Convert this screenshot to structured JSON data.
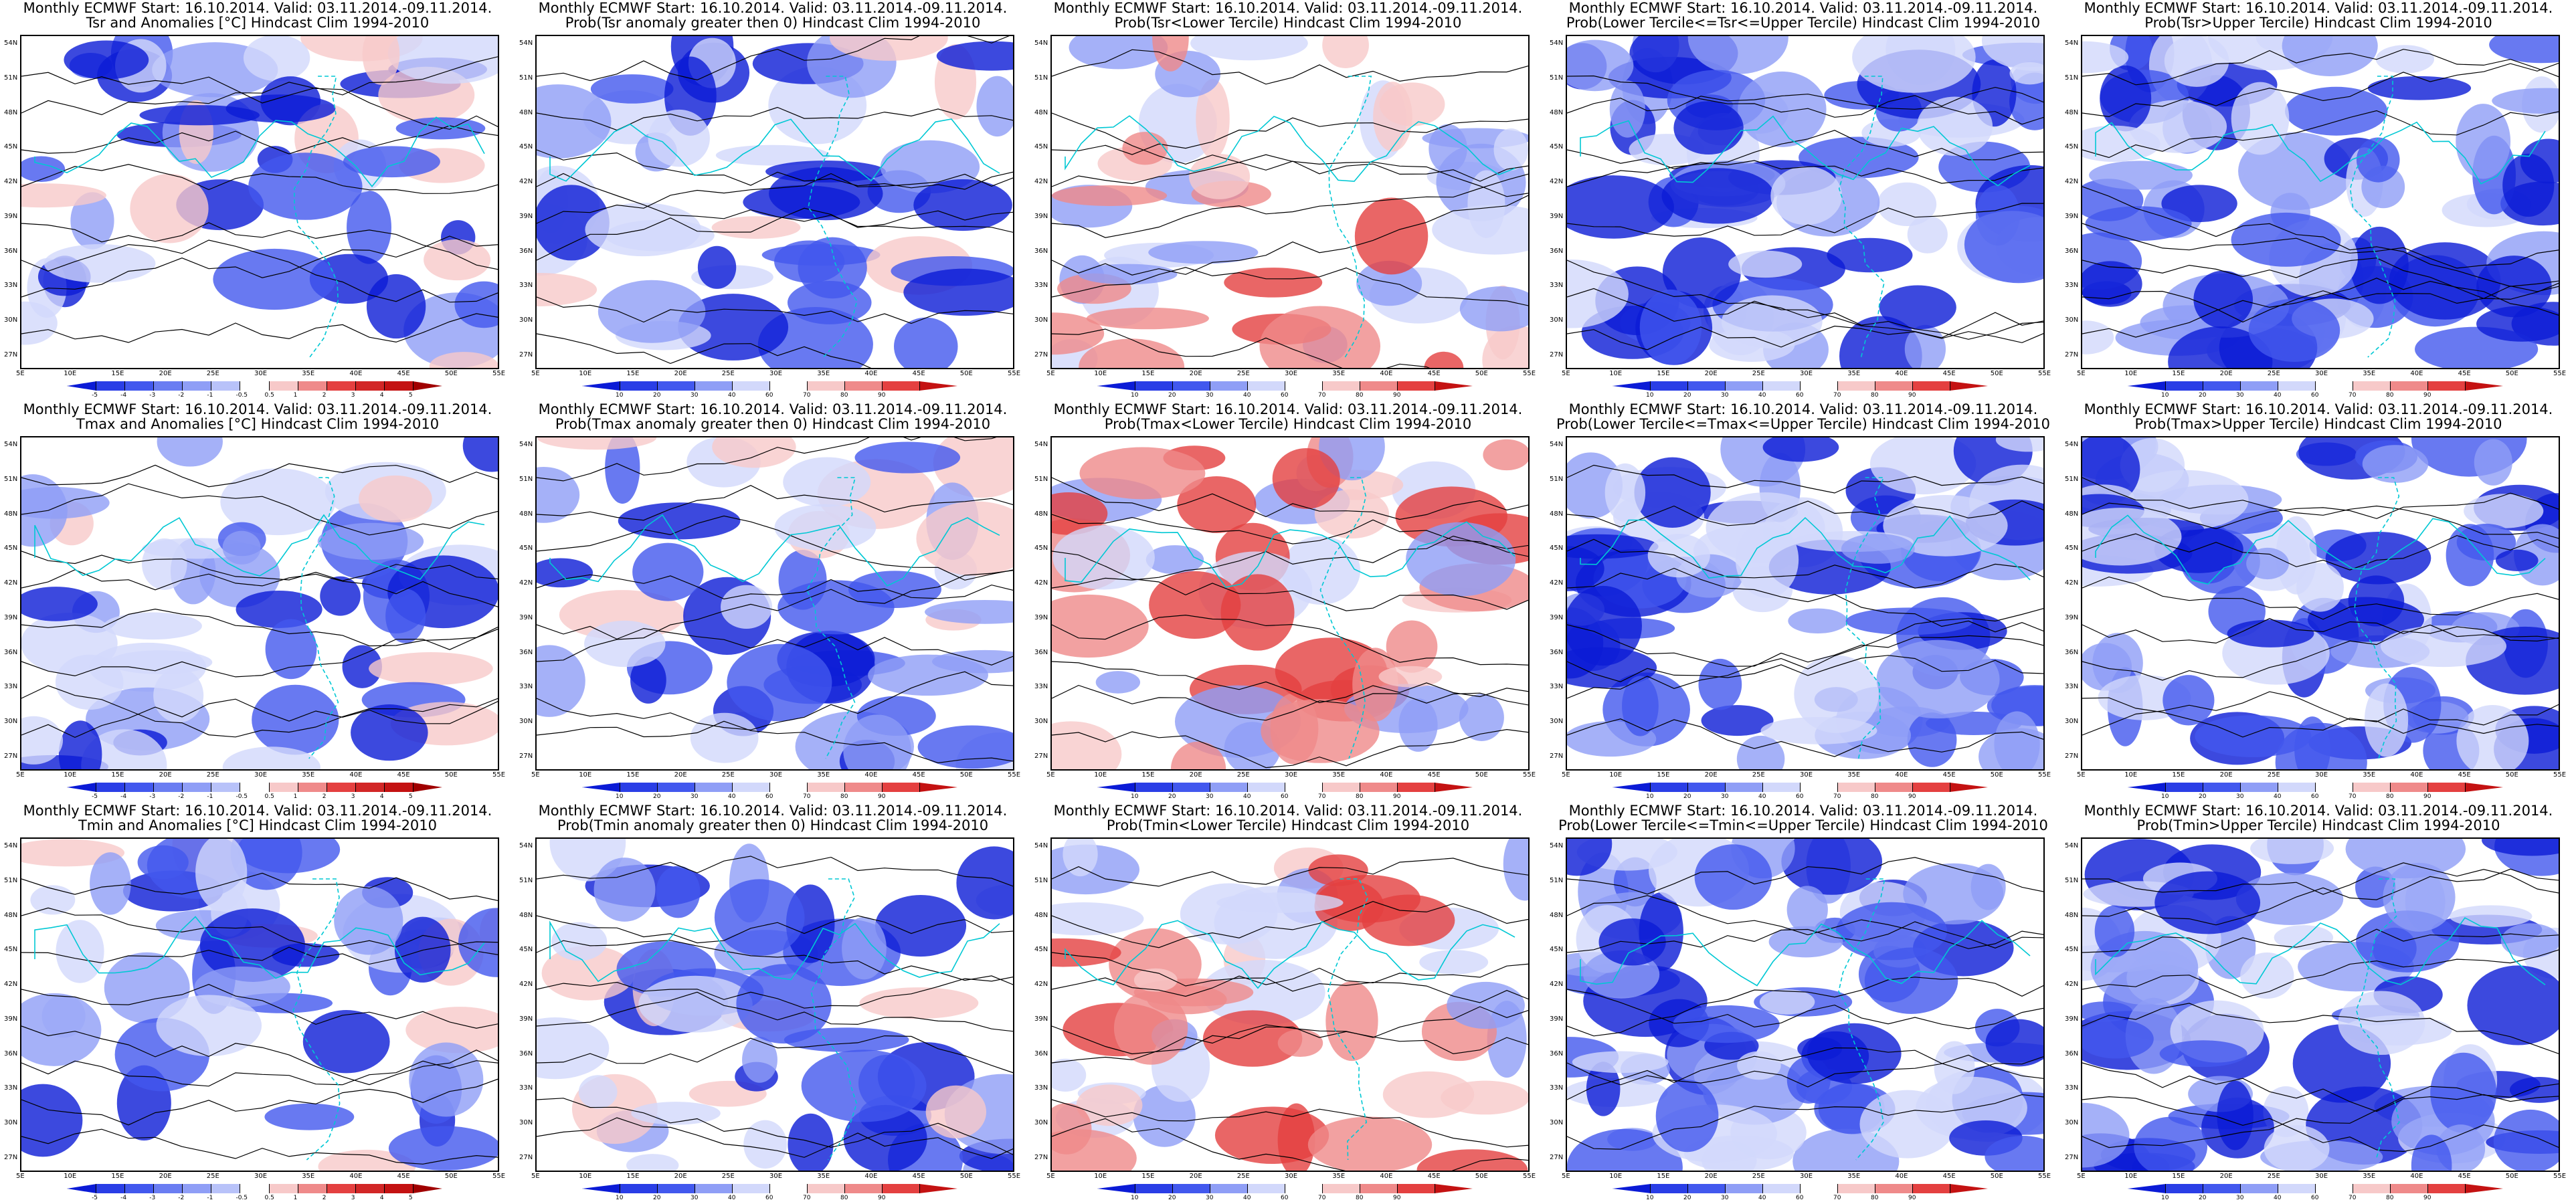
{
  "header_prefix": "Monthly ECMWF Start: 16.10.2014. Valid: 03.11.2014.-09.11.2014.",
  "colors": {
    "deep_blue": "#0b1bd6",
    "mid_blue": "#4258ee",
    "light_blue": "#8f9ef6",
    "pale_blue": "#d2d8fb",
    "pale_red": "#f7c9c9",
    "light_red": "#ef8a8a",
    "mid_red": "#e44040",
    "deep_red": "#c41212",
    "coast": "#00c8d4",
    "contour": "#000000"
  },
  "latitude_labels": [
    "54N",
    "51N",
    "48N",
    "45N",
    "42N",
    "39N",
    "36N",
    "33N",
    "30N",
    "27N"
  ],
  "longitude_labels": [
    "5E",
    "10E",
    "15E",
    "20E",
    "25E",
    "30E",
    "35E",
    "40E",
    "45E",
    "50E",
    "55E"
  ],
  "anomaly_colorbar": {
    "ticks": [
      "-5",
      "-4",
      "-3",
      "-2",
      "-1",
      "-0.5",
      "0.5",
      "1",
      "2",
      "3",
      "4",
      "5"
    ],
    "colors": [
      "#0b1bd6",
      "#2a3ee6",
      "#4258ee",
      "#6a7df2",
      "#8f9ef6",
      "#b8c2f9",
      "#ffffff",
      "#f7c9c9",
      "#ef8a8a",
      "#e44040",
      "#d22626",
      "#c41212",
      "#a00000"
    ]
  },
  "prob_colorbar": {
    "ticks": [
      "10",
      "20",
      "30",
      "40",
      "60",
      "70",
      "80",
      "90"
    ],
    "colors": [
      "#0b1bd6",
      "#2a3ee6",
      "#4258ee",
      "#8f9ef6",
      "#d2d8fb",
      "#ffffff",
      "#f7c9c9",
      "#ef8a8a",
      "#e44040",
      "#c41212"
    ]
  },
  "panels": [
    {
      "title_line2": "Tsr and Anomalies [°C] Hindcast Clim 1994-2010",
      "kind": "anomaly"
    },
    {
      "title_line2": "Prob(Tsr anomaly greater then 0) Hindcast Clim 1994-2010",
      "kind": "prob"
    },
    {
      "title_line2": "Prob(Tsr<Lower Tercile) Hindcast Clim 1994-2010",
      "kind": "prob"
    },
    {
      "title_line2": "Prob(Lower Tercile<=Tsr<=Upper Tercile) Hindcast Clim 1994-2010",
      "kind": "prob"
    },
    {
      "title_line2": "Prob(Tsr>Upper Tercile) Hindcast Clim 1994-2010",
      "kind": "prob"
    },
    {
      "title_line2": "Tmax and Anomalies [°C] Hindcast Clim 1994-2010",
      "kind": "anomaly"
    },
    {
      "title_line2": "Prob(Tmax anomaly greater then 0) Hindcast Clim 1994-2010",
      "kind": "prob"
    },
    {
      "title_line2": "Prob(Tmax<Lower Tercile) Hindcast Clim 1994-2010",
      "kind": "prob"
    },
    {
      "title_line2": "Prob(Lower Tercile<=Tmax<=Upper Tercile) Hindcast Clim 1994-2010",
      "kind": "prob"
    },
    {
      "title_line2": "Prob(Tmax>Upper Tercile) Hindcast Clim 1994-2010",
      "kind": "prob"
    },
    {
      "title_line2": "Tmin and Anomalies [°C] Hindcast Clim 1994-2010",
      "kind": "anomaly"
    },
    {
      "title_line2": "Prob(Tmin anomaly greater then 0) Hindcast Clim 1994-2010",
      "kind": "prob"
    },
    {
      "title_line2": "Prob(Tmin<Lower Tercile) Hindcast Clim 1994-2010",
      "kind": "prob"
    },
    {
      "title_line2": "Prob(Lower Tercile<=Tmin<=Upper Tercile) Hindcast Clim 1994-2010",
      "kind": "prob"
    },
    {
      "title_line2": "Prob(Tmin>Upper Tercile) Hindcast Clim 1994-2010",
      "kind": "prob"
    }
  ]
}
